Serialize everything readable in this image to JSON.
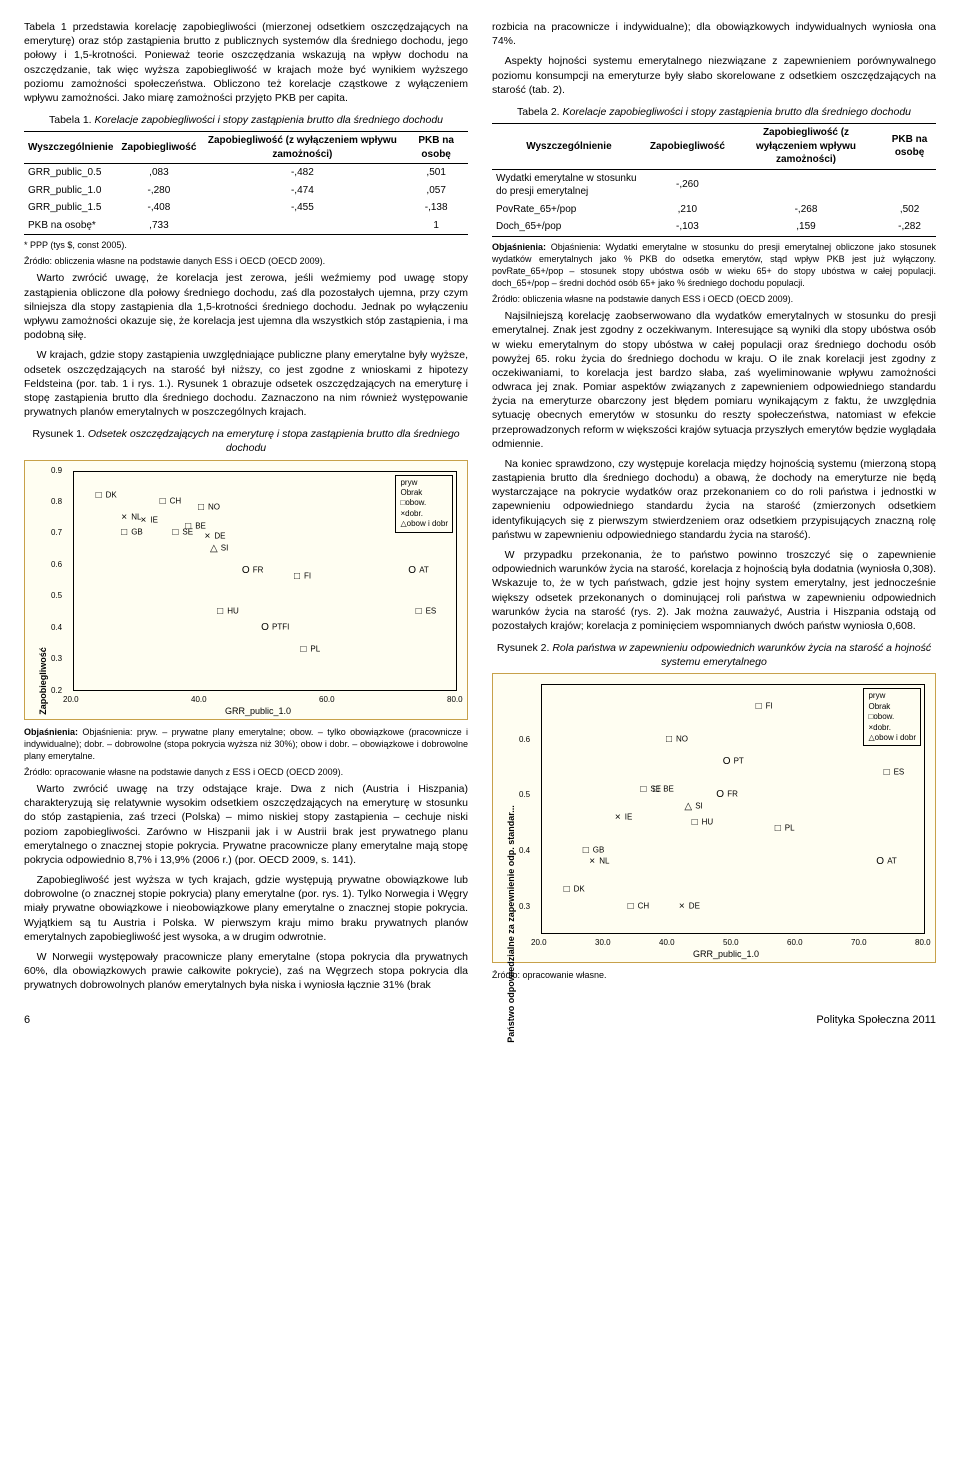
{
  "left": {
    "p1": "Tabela 1 przedstawia korelację zapobiegliwości (mierzonej odsetkiem oszczędzających na emeryturę) oraz stóp zastąpienia brutto z publicznych systemów dla średniego dochodu, jego połowy i 1,5-krotności. Ponieważ teorie oszczędzania wskazują na wpływ dochodu na oszczędzanie, tak więc wyższa zapobiegliwość w krajach może być wynikiem wyższego poziomu zamożności społeczeństwa. Obliczono też korelacje cząstkowe z wyłączeniem wpływu zamożności. Jako miarę zamożności przyjęto PKB per capita.",
    "t1_caption_a": "Tabela 1. ",
    "t1_caption_b": "Korelacje zapobiegliwości i stopy zastąpienia brutto dla średniego dochodu",
    "t1": {
      "h1": "Wyszczególnienie",
      "h2": "Zapobiegliwość",
      "h3": "Zapobiegliwość (z wyłączeniem wpływu zamożności)",
      "h4": "PKB na osobę",
      "rows": [
        {
          "a": "GRR_public_0.5",
          "b": ",083",
          "c": "-,482",
          "d": ",501"
        },
        {
          "a": "GRR_public_1.0",
          "b": "-,280",
          "c": "-,474",
          "d": ",057"
        },
        {
          "a": "GRR_public_1.5",
          "b": "-,408",
          "c": "-,455",
          "d": "-,138"
        },
        {
          "a": "PKB na osobę*",
          "b": ",733",
          "c": "",
          "d": "1"
        }
      ]
    },
    "t1_note1": "* PPP (tys $, const 2005).",
    "t1_note2": "Źródło: obliczenia własne na podstawie danych ESS i OECD (OECD 2009).",
    "p2": "Warto zwrócić uwagę, że korelacja jest zerowa, jeśli weźmiemy pod uwagę stopy zastąpienia obliczone dla połowy średniego dochodu, zaś dla pozostałych ujemna, przy czym silniejsza dla stopy zastąpienia dla 1,5-krotności średniego dochodu. Jednak po wyłączeniu wpływu zamożności okazuje się, że korelacja jest ujemna dla wszystkich stóp zastąpienia, i ma podobną siłę.",
    "p3": "W krajach, gdzie stopy zastąpienia uwzględniające publiczne plany emerytalne były wyższe, odsetek oszczędzających na starość był niższy, co jest zgodne z wnioskami z hipotezy Feldsteina (por. tab. 1 i rys. 1.). Rysunek 1 obrazuje odsetek oszczędzających na emeryturę i stopę zastąpienia brutto dla średniego dochodu. Zaznaczono na nim również występowanie prywatnych planów emerytalnych w poszczególnych krajach.",
    "f1_caption_a": "Rysunek 1. ",
    "f1_caption_b": "Odsetek oszczędzających na emeryturę i stopa zastąpienia brutto dla średniego dochodu",
    "f1": {
      "xlabel": "GRR_public_1.0",
      "ylabel": "Zapobiegliwość",
      "xlim": [
        20,
        80
      ],
      "ylim": [
        0.2,
        0.9
      ],
      "xticks": [
        20.0,
        40.0,
        60.0,
        80.0
      ],
      "yticks": [
        0.2,
        0.3,
        0.4,
        0.5,
        0.6,
        0.7,
        0.8,
        0.9
      ],
      "legend": [
        "pryw",
        "Obrak",
        "□obow.",
        "×dobr.",
        "△obow i dobr"
      ],
      "points": [
        {
          "m": "□",
          "l": "DK",
          "x": 24,
          "y": 0.82
        },
        {
          "m": "□",
          "l": "CH",
          "x": 34,
          "y": 0.8
        },
        {
          "m": "□",
          "l": "NO",
          "x": 40,
          "y": 0.78
        },
        {
          "m": "×",
          "l": "NL",
          "x": 28,
          "y": 0.75
        },
        {
          "m": "×",
          "l": "IE",
          "x": 31,
          "y": 0.74
        },
        {
          "m": "□",
          "l": "BE",
          "x": 38,
          "y": 0.72
        },
        {
          "m": "□",
          "l": "GB",
          "x": 28,
          "y": 0.7
        },
        {
          "m": "□",
          "l": "SE",
          "x": 36,
          "y": 0.7
        },
        {
          "m": "×",
          "l": "DE",
          "x": 41,
          "y": 0.69
        },
        {
          "m": "△",
          "l": "SI",
          "x": 42,
          "y": 0.65
        },
        {
          "m": "O",
          "l": "FR",
          "x": 47,
          "y": 0.58
        },
        {
          "m": "□",
          "l": "FI",
          "x": 55,
          "y": 0.56
        },
        {
          "m": "O",
          "l": "AT",
          "x": 73,
          "y": 0.58
        },
        {
          "m": "□",
          "l": "HU",
          "x": 43,
          "y": 0.45
        },
        {
          "m": "□",
          "l": "ES",
          "x": 74,
          "y": 0.45
        },
        {
          "m": "O",
          "l": "PTFI",
          "x": 50,
          "y": 0.4
        },
        {
          "m": "□",
          "l": "PL",
          "x": 56,
          "y": 0.33
        }
      ]
    },
    "f1_note1": "Objaśnienia: pryw. – prywatne plany emerytalne; obow. – tylko obowiązkowe (pracownicze i indywidualne); dobr. – dobrowolne (stopa pokrycia wyższa niż 30%); obow i dobr. – obowiązkowe i dobrowolne plany emerytalne.",
    "f1_note2": "Źródło: opracowanie własne na podstawie danych z ESS i OECD (OECD 2009).",
    "p4": "Warto zwrócić uwagę na trzy odstające kraje. Dwa z nich (Austria i Hiszpania) charakteryzują się relatywnie wysokim odsetkiem oszczędzających na emeryturę w stosunku do stóp zastąpienia, zaś trzeci (Polska) – mimo niskiej stopy zastąpienia – cechuje niski poziom zapobiegliwości. Zarówno w Hiszpanii jak i w Austrii brak jest prywatnego planu emerytalnego o znacznej stopie pokrycia. Prywatne pracownicze plany emerytalne mają stopę pokrycia odpowiednio 8,7% i 13,9% (2006 r.) (por. OECD 2009, s. 141).",
    "p5": "Zapobiegliwość jest wyższa w tych krajach, gdzie występują prywatne obowiązkowe lub dobrowolne (o znacznej stopie pokrycia) plany emerytalne (por. rys. 1). Tylko Norwegia i Węgry miały prywatne obowiązkowe i nieobowiązkowe plany emerytalne o znacznej stopie pokrycia. Wyjątkiem są tu Austria i Polska. W pierwszym kraju mimo braku prywatnych planów emerytalnych zapobiegliwość jest wysoka, a w drugim odwrotnie.",
    "p6": "W Norwegii występowały pracownicze plany emerytalne (stopa pokrycia dla prywatnych 60%, dla obowiązkowych prawie całkowite pokrycie), zaś na Węgrzech stopa pokrycia dla prywatnych dobrowolnych planów emerytalnych była niska i wyniosła łącznie 31% (brak"
  },
  "right": {
    "p1": "rozbicia na pracownicze i indywidualne); dla obowiązkowych indywidualnych wyniosła ona 74%.",
    "p2": "Aspekty hojności systemu emerytalnego niezwiązane z zapewnieniem porównywalnego poziomu konsumpcji na emeryturze były słabo skorelowane z odsetkiem oszczędzających na starość (tab. 2).",
    "t2_caption_a": "Tabela 2. ",
    "t2_caption_b": "Korelacje zapobiegliwości i stopy zastąpienia brutto dla średniego dochodu",
    "t2": {
      "h1": "Wyszczególnienie",
      "h2": "Zapobiegliwość",
      "h3": "Zapobiegliwość (z wyłączeniem wpływu zamożności)",
      "h4": "PKB na osobę",
      "rows": [
        {
          "a": "Wydatki emerytalne w stosunku do presji emerytalnej",
          "b": "-,260",
          "c": "",
          "d": ""
        },
        {
          "a": "PovRate_65+/pop",
          "b": ",210",
          "c": "-,268",
          "d": ",502"
        },
        {
          "a": "Doch_65+/pop",
          "b": "-,103",
          "c": ",159",
          "d": "-,282"
        }
      ]
    },
    "t2_note1": "Objaśnienia: Wydatki emerytalne w stosunku do presji emerytalnej obliczone jako stosunek wydatków emerytalnych jako % PKB do odsetka emerytów, stąd wpływ PKB jest już wyłączony. povRate_65+/pop – stosunek stopy ubóstwa osób w wieku 65+ do stopy ubóstwa w całej populacji. doch_65+/pop – średni dochód osób 65+ jako % średniego dochodu populacji.",
    "t2_note2": "Źródło: obliczenia własne na podstawie danych ESS i OECD (OECD 2009).",
    "p3": "Najsilniejszą korelację zaobserwowano dla wydatków emerytalnych w stosunku do presji emerytalnej. Znak jest zgodny z oczekiwanym. Interesujące są wyniki dla stopy ubóstwa osób w wieku emerytalnym do stopy ubóstwa w całej populacji oraz średniego dochodu osób powyżej 65. roku życia do średniego dochodu w kraju. O ile znak korelacji jest zgodny z oczekiwaniami, to korelacja jest bardzo słaba, zaś wyeliminowanie wpływu zamożności odwraca jej znak. Pomiar aspektów związanych z zapewnieniem odpowiedniego standardu życia na emeryturze obarczony jest błędem pomiaru wynikającym z faktu, że uwzględnia sytuację obecnych emerytów w stosunku do reszty społeczeństwa, natomiast w efekcie przeprowadzonych reform w większości krajów sytuacja przyszłych emerytów będzie wyglądała odmiennie.",
    "p4": "Na koniec sprawdzono, czy występuje korelacja między hojnością systemu (mierzoną stopą zastąpienia brutto dla średniego dochodu) a obawą, że dochody na emeryturze nie będą wystarczające na pokrycie wydatków oraz przekonaniem co do roli państwa i jednostki w zapewnieniu odpowiedniego standardu życia na starość (zmierzonych odsetkiem identyfikujących się z pierwszym stwierdzeniem oraz odsetkiem przypisujących znaczną rolę państwu w zapewnieniu odpowiedniego standardu życia na starość).",
    "p5": "W przypadku przekonania, że to państwo powinno troszczyć się o zapewnienie odpowiednich warunków życia na starość, korelacja z hojnością była dodatnia (wyniosła 0,308). Wskazuje to, że w tych państwach, gdzie jest hojny system emerytalny, jest jednocześnie większy odsetek przekonanych o dominującej roli państwa w zapewnieniu odpowiednich warunków życia na starość (rys. 2). Jak można zauważyć, Austria i Hiszpania odstają od pozostałych krajów; korelacja z pominięciem wspomnianych dwóch państw wyniosła 0,608.",
    "f2_caption_a": "Rysunek 2. ",
    "f2_caption_b": "Rola państwa w zapewnieniu odpowiednich warunków życia na starość a hojność systemu emerytalnego",
    "f2": {
      "xlabel": "GRR_public_1.0",
      "ylabel": "Państwo odpowiedzialne za zapewnienie odp. standar...",
      "xlim": [
        20,
        80
      ],
      "ylim": [
        0.25,
        0.7
      ],
      "xticks": [
        20.0,
        30.0,
        40.0,
        50.0,
        60.0,
        70.0,
        80.0
      ],
      "yticks": [
        0.3,
        0.4,
        0.5,
        0.6
      ],
      "legend": [
        "pryw",
        "Obrak",
        "□obow.",
        "×dobr.",
        "△obow i dobr"
      ],
      "points": [
        {
          "m": "□",
          "l": "FI",
          "x": 54,
          "y": 0.66
        },
        {
          "m": "□",
          "l": "NO",
          "x": 40,
          "y": 0.6
        },
        {
          "m": "O",
          "l": "PT",
          "x": 49,
          "y": 0.56
        },
        {
          "m": "□",
          "l": "ES",
          "x": 74,
          "y": 0.54
        },
        {
          "m": "□",
          "l": "BE",
          "x": 38,
          "y": 0.51
        },
        {
          "m": "□",
          "l": "SE",
          "x": 36,
          "y": 0.51
        },
        {
          "m": "O",
          "l": "FR",
          "x": 48,
          "y": 0.5
        },
        {
          "m": "△",
          "l": "SI",
          "x": 43,
          "y": 0.48
        },
        {
          "m": "□",
          "l": "HU",
          "x": 44,
          "y": 0.45
        },
        {
          "m": "×",
          "l": "IE",
          "x": 32,
          "y": 0.46
        },
        {
          "m": "□",
          "l": "PL",
          "x": 57,
          "y": 0.44
        },
        {
          "m": "□",
          "l": "GB",
          "x": 27,
          "y": 0.4
        },
        {
          "m": "×",
          "l": "NL",
          "x": 28,
          "y": 0.38
        },
        {
          "m": "O",
          "l": "AT",
          "x": 73,
          "y": 0.38
        },
        {
          "m": "□",
          "l": "DK",
          "x": 24,
          "y": 0.33
        },
        {
          "m": "×",
          "l": "DE",
          "x": 42,
          "y": 0.3
        },
        {
          "m": "□",
          "l": "CH",
          "x": 34,
          "y": 0.3
        }
      ]
    },
    "f2_note": "Źródło: opracowanie własne."
  },
  "footer": {
    "page": "6",
    "journal": "Polityka Społeczna 2011"
  }
}
